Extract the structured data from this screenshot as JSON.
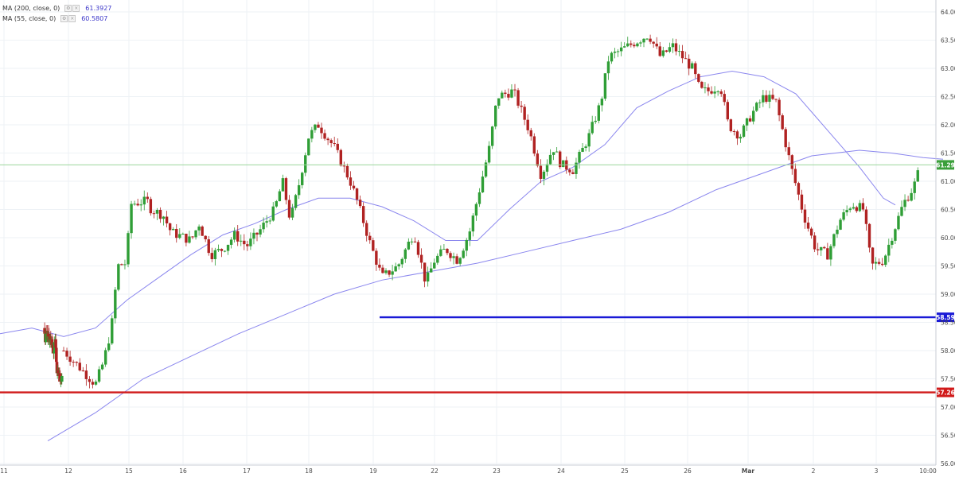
{
  "legend": [
    {
      "label": "MA (200, close, 0)",
      "value": "61.3927"
    },
    {
      "label": "MA (55, close, 0)",
      "value": "60.5807"
    }
  ],
  "colors": {
    "up": "#2f9e36",
    "down": "#b02222",
    "ma": "#8a86ee",
    "grid": "#eef2f6",
    "support_blue": "#1a1ad6",
    "support_red": "#d11a1a",
    "price_line": "#9bd69b",
    "price_badge": "#3b9f3b"
  },
  "chart_data": {
    "type": "candlestick",
    "y_axis": {
      "min": 56.0,
      "max": 64.0,
      "ticks": [
        "64.00",
        "63.50",
        "63.00",
        "62.50",
        "62.00",
        "61.50",
        "61.00",
        "60.50",
        "60.00",
        "59.50",
        "59.00",
        "58.50",
        "58.00",
        "57.50",
        "57.00",
        "56.50",
        "56.00"
      ]
    },
    "x_axis": {
      "ticks": [
        "11",
        "12",
        "15",
        "16",
        "17",
        "18",
        "19",
        "22",
        "23",
        "24",
        "25",
        "26",
        "Mar",
        "2",
        "3",
        "10:00"
      ]
    },
    "horizontal_levels": [
      {
        "value": 58.59,
        "label": "58.59",
        "color": "blue"
      },
      {
        "value": 57.26,
        "label": "57.26",
        "color": "red"
      },
      {
        "value": 61.29,
        "label": "61.29",
        "color": "green"
      }
    ],
    "ma_200": [
      [
        0,
        56.4
      ],
      [
        60,
        56.9
      ],
      [
        120,
        57.5
      ],
      [
        180,
        57.9
      ],
      [
        240,
        58.3
      ],
      [
        300,
        58.65
      ],
      [
        360,
        59.0
      ],
      [
        420,
        59.25
      ],
      [
        480,
        59.4
      ],
      [
        540,
        59.55
      ],
      [
        600,
        59.75
      ],
      [
        660,
        59.95
      ],
      [
        720,
        60.15
      ],
      [
        780,
        60.45
      ],
      [
        840,
        60.85
      ],
      [
        900,
        61.15
      ],
      [
        960,
        61.45
      ],
      [
        1020,
        61.55
      ],
      [
        1060,
        61.5
      ],
      [
        1100,
        61.42
      ],
      [
        1125,
        61.39
      ]
    ],
    "ma_55": [
      [
        0,
        58.3
      ],
      [
        40,
        58.4
      ],
      [
        80,
        58.25
      ],
      [
        120,
        58.4
      ],
      [
        160,
        58.9
      ],
      [
        200,
        59.3
      ],
      [
        240,
        59.7
      ],
      [
        280,
        60.05
      ],
      [
        320,
        60.25
      ],
      [
        360,
        60.5
      ],
      [
        400,
        60.7
      ],
      [
        440,
        60.7
      ],
      [
        480,
        60.55
      ],
      [
        520,
        60.3
      ],
      [
        560,
        59.95
      ],
      [
        600,
        59.95
      ],
      [
        640,
        60.5
      ],
      [
        680,
        61.0
      ],
      [
        720,
        61.25
      ],
      [
        760,
        61.65
      ],
      [
        800,
        62.3
      ],
      [
        840,
        62.6
      ],
      [
        880,
        62.85
      ],
      [
        920,
        62.95
      ],
      [
        960,
        62.85
      ],
      [
        1000,
        62.55
      ],
      [
        1040,
        61.9
      ],
      [
        1080,
        61.25
      ],
      [
        1110,
        60.7
      ],
      [
        1125,
        60.58
      ]
    ],
    "candles": [
      [
        56.1,
        58.4,
        58.5,
        58.2,
        58.3
      ],
      [
        56.8,
        58.3,
        58.4,
        58.1,
        58.15
      ],
      [
        57.5,
        58.15,
        58.4,
        58.1,
        58.35
      ],
      [
        58.2,
        58.35,
        58.45,
        58.3,
        58.3
      ],
      [
        58.9,
        58.3,
        58.35,
        58.15,
        58.3
      ],
      [
        59.6,
        58.3,
        58.45,
        58.15,
        58.2
      ],
      [
        60.3,
        58.2,
        58.35,
        58.1,
        58.3
      ],
      [
        61.0,
        58.3,
        58.45,
        58.2,
        58.25
      ],
      [
        61.7,
        58.3,
        58.4,
        58.1,
        58.15
      ],
      [
        62.4,
        58.15,
        58.25,
        58.05,
        58.2
      ],
      [
        63.1,
        58.2,
        58.3,
        58.1,
        58.25
      ],
      [
        63.8,
        58.25,
        58.35,
        58.1,
        58.15
      ],
      [
        64.5,
        58.15,
        58.25,
        58.05,
        58.2
      ],
      [
        65.2,
        58.2,
        58.3,
        57.95,
        58.05
      ],
      [
        65.9,
        58.05,
        58.15,
        57.95,
        58.1
      ],
      [
        66.6,
        58.1,
        58.25,
        58.0,
        58.05
      ],
      [
        67.3,
        58.05,
        58.15,
        57.85,
        57.95
      ],
      [
        68.0,
        57.95,
        58.1,
        57.85,
        58.0
      ],
      [
        68.7,
        58.0,
        58.25,
        57.95,
        58.15
      ],
      [
        69.4,
        58.15,
        58.3,
        58.05,
        58.2
      ],
      [
        70.1,
        58.2,
        58.3,
        58.0,
        58.05
      ],
      [
        70.8,
        58.05,
        58.1,
        57.75,
        57.8
      ],
      [
        71.5,
        57.8,
        57.85,
        57.55,
        57.6
      ],
      [
        72.2,
        57.6,
        57.75,
        57.5,
        57.65
      ],
      [
        72.9,
        57.65,
        57.75,
        57.55,
        57.6
      ],
      [
        73.6,
        57.6,
        57.7,
        57.45,
        57.55
      ],
      [
        74.3,
        57.55,
        57.7,
        57.5,
        57.6
      ],
      [
        75.0,
        57.6,
        57.7,
        57.5,
        57.55
      ],
      [
        75.7,
        57.55,
        57.65,
        57.4,
        57.45
      ],
      [
        76.4,
        57.45,
        57.55,
        57.35,
        57.5
      ],
      [
        77.1,
        57.5,
        57.6,
        57.4,
        57.45
      ],
      [
        77.8,
        57.45,
        57.6,
        57.4,
        57.55
      ]
    ]
  }
}
